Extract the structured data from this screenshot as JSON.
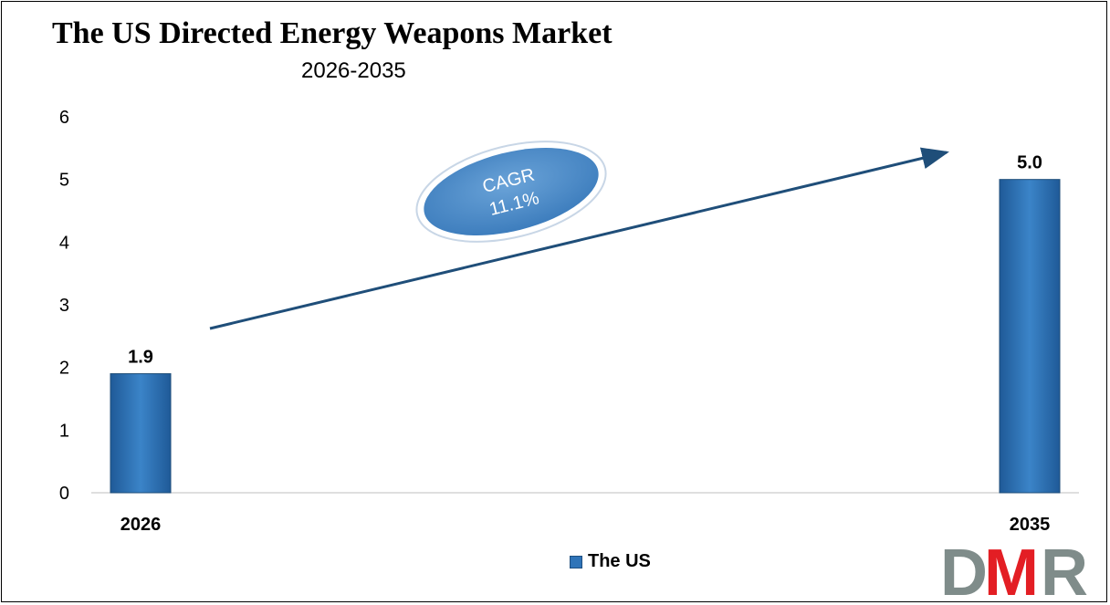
{
  "chart_data": {
    "type": "bar",
    "title": "The US Directed Energy Weapons Market",
    "subtitle": "2026-2035",
    "categories": [
      "2026",
      "2035"
    ],
    "series": [
      {
        "name": "The US",
        "values": [
          1.9,
          5.0
        ]
      }
    ],
    "data_labels": [
      "1.9",
      "5.0"
    ],
    "ylim": [
      0,
      6
    ],
    "yticks": [
      "0",
      "1",
      "2",
      "3",
      "4",
      "5",
      "6"
    ],
    "xlabel": "",
    "ylabel": "",
    "grid": false,
    "legend_position": "bottom",
    "annotation": {
      "line1": "CAGR",
      "line2": "11.1%"
    },
    "bar_color": "#2f74b8"
  },
  "logo": {
    "text": "DMR"
  }
}
